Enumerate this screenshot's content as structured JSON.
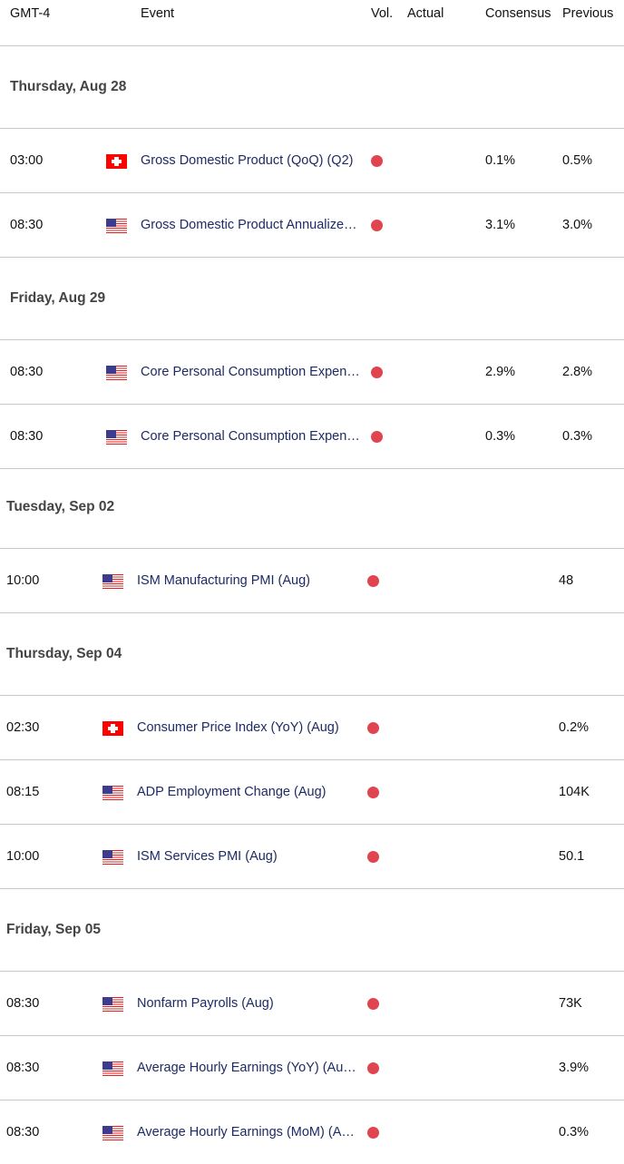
{
  "header": {
    "time": "GMT-4",
    "event": "Event",
    "vol": "Vol.",
    "actual": "Actual",
    "consensus": "Consensus",
    "previous": "Previous"
  },
  "colors": {
    "high_volatility": "#e0454f",
    "event_text": "#1e2a63"
  },
  "days": [
    {
      "label": "Thursday, Aug 28",
      "events": [
        {
          "time": "03:00",
          "flag": "switzerland-flag-icon",
          "event": "Gross Domestic Product (QoQ) (Q2)",
          "actual": "",
          "consensus": "0.1%",
          "previous": "0.5%"
        },
        {
          "time": "08:30",
          "flag": "us-flag-icon",
          "event": "Gross Domestic Product Annualize…",
          "actual": "",
          "consensus": "3.1%",
          "previous": "3.0%"
        }
      ]
    },
    {
      "label": "Friday, Aug 29",
      "events": [
        {
          "time": "08:30",
          "flag": "us-flag-icon",
          "event": "Core Personal Consumption Expen…",
          "actual": "",
          "consensus": "2.9%",
          "previous": "2.8%"
        },
        {
          "time": "08:30",
          "flag": "us-flag-icon",
          "event": "Core Personal Consumption Expen…",
          "actual": "",
          "consensus": "0.3%",
          "previous": "0.3%"
        }
      ]
    },
    {
      "label": "Tuesday, Sep 02",
      "events": [
        {
          "time": "10:00",
          "flag": "us-flag-icon",
          "event": "ISM Manufacturing PMI (Aug)",
          "actual": "",
          "consensus": "",
          "previous": "48"
        }
      ]
    },
    {
      "label": "Thursday, Sep 04",
      "events": [
        {
          "time": "02:30",
          "flag": "switzerland-flag-icon",
          "event": "Consumer Price Index (YoY) (Aug)",
          "actual": "",
          "consensus": "",
          "previous": "0.2%"
        },
        {
          "time": "08:15",
          "flag": "us-flag-icon",
          "event": "ADP Employment Change (Aug)",
          "actual": "",
          "consensus": "",
          "previous": "104K"
        },
        {
          "time": "10:00",
          "flag": "us-flag-icon",
          "event": "ISM Services PMI (Aug)",
          "actual": "",
          "consensus": "",
          "previous": "50.1"
        }
      ]
    },
    {
      "label": "Friday, Sep 05",
      "events": [
        {
          "time": "08:30",
          "flag": "us-flag-icon",
          "event": "Nonfarm Payrolls (Aug)",
          "actual": "",
          "consensus": "",
          "previous": "73K"
        },
        {
          "time": "08:30",
          "flag": "us-flag-icon",
          "event": "Average Hourly Earnings (YoY) (Au…",
          "actual": "",
          "consensus": "",
          "previous": "3.9%"
        },
        {
          "time": "08:30",
          "flag": "us-flag-icon",
          "event": "Average Hourly Earnings (MoM) (A…",
          "actual": "",
          "consensus": "",
          "previous": "0.3%"
        }
      ]
    }
  ]
}
